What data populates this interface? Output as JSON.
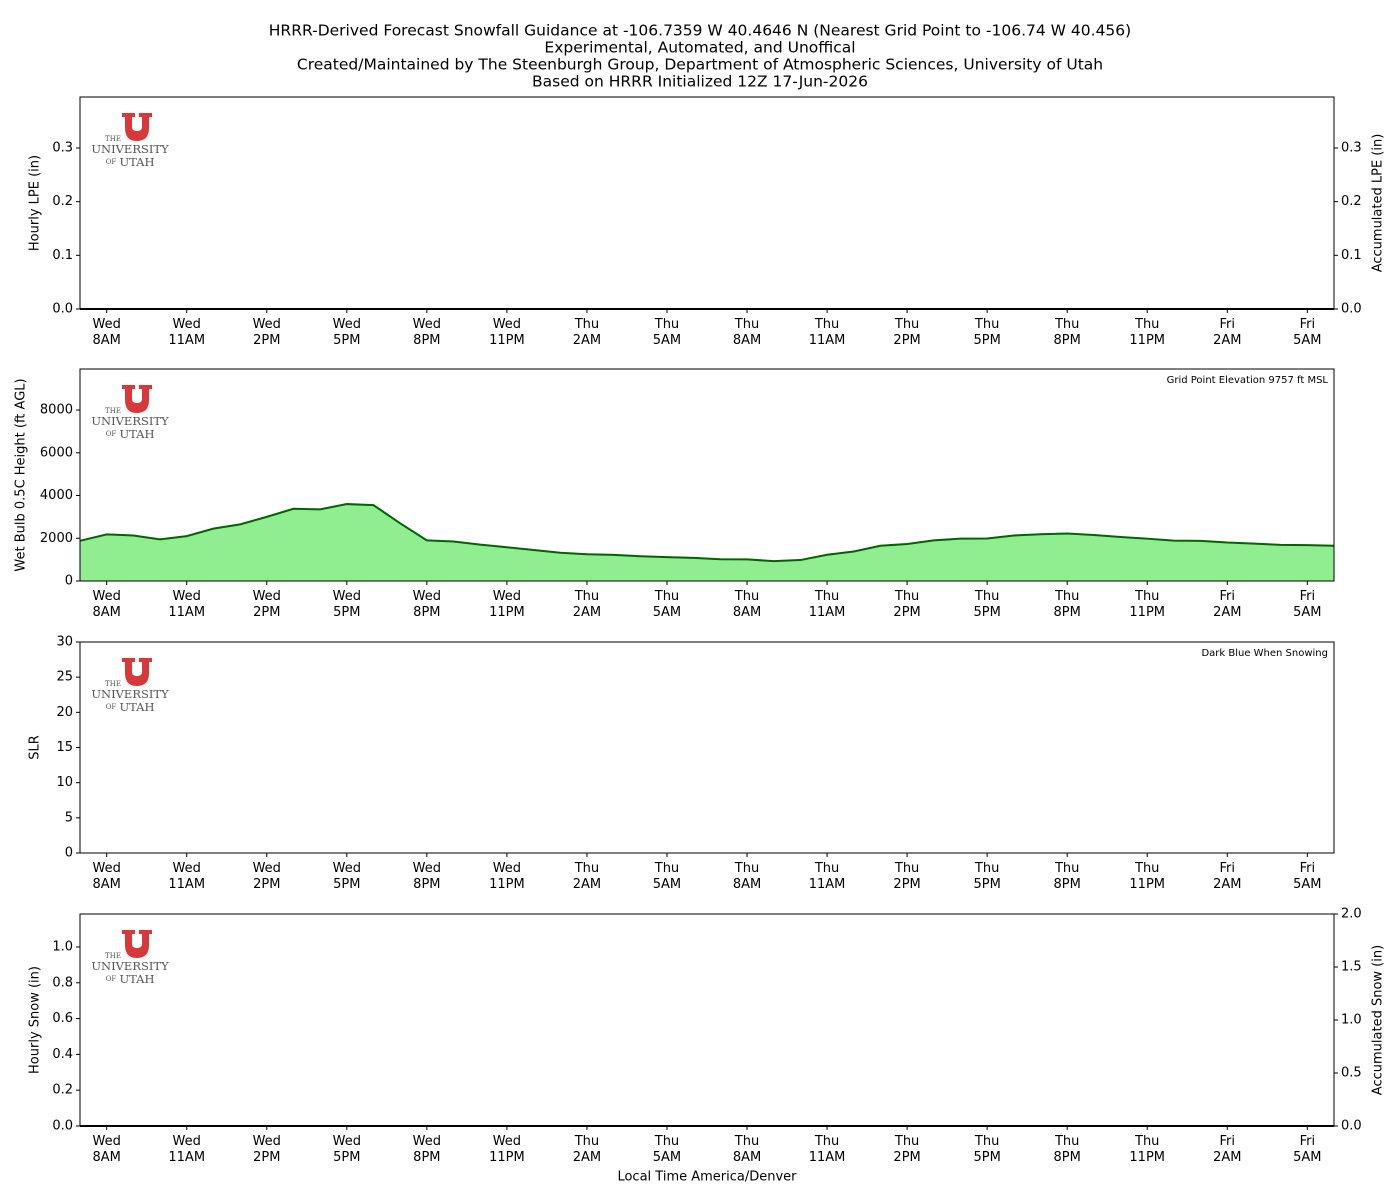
{
  "title": [
    "HRRR-Derived Forecast Snowfall Guidance at -106.7359 W 40.4646 N (Nearest Grid Point to -106.74 W 40.456)",
    "Experimental, Automated, and Unoffical",
    "Created/Maintained by The Steenburgh Group, Department of Atmospheric Sciences, University of Utah",
    "Based on HRRR Initialized 12Z 17-Jun-2026"
  ],
  "xlabel": "Local Time America/Denver",
  "logo": [
    "THE",
    "UNIVERSITY",
    "OF",
    "UTAH"
  ],
  "chart_data": [
    {
      "type": "bar",
      "ylabel": "Hourly LPE (in)",
      "y2label": "Accumulated LPE (in)",
      "categories": [
        null,
        "Wed\n8AM",
        null,
        null,
        "Wed\n11AM",
        null,
        null,
        "Wed\n2PM",
        null,
        null,
        "Wed\n5PM",
        null,
        null,
        "Wed\n8PM",
        null,
        null,
        "Wed\n11PM",
        null,
        null,
        "Thu\n2AM",
        null,
        null,
        "Thu\n5AM",
        null,
        null,
        "Thu\n8AM",
        null,
        null,
        "Thu\n11AM",
        null,
        null,
        "Thu\n2PM",
        null,
        null,
        "Thu\n5PM",
        null,
        null,
        "Thu\n8PM",
        null,
        null,
        "Thu\n11PM",
        null,
        null,
        "Fri\n2AM",
        null,
        null,
        "Fri\n5AM",
        null
      ],
      "ylim": [
        0,
        0.395
      ],
      "yticks": [
        {
          "value": 0,
          "label": "0.0"
        },
        0.1,
        0.2,
        0.3
      ],
      "y2lim": [
        0,
        0.395
      ],
      "y2ticks": [
        {
          "value": 0,
          "label": "0.0"
        },
        0.1,
        0.2,
        0.3
      ],
      "series": [
        {
          "color": "#000000",
          "values": [
            0,
            0,
            0,
            0,
            0,
            0,
            0,
            0,
            0,
            0,
            0,
            0,
            0,
            0,
            0,
            0,
            0,
            0,
            0,
            0,
            0,
            0,
            0,
            0,
            0,
            0,
            0,
            0,
            0,
            0,
            0,
            0,
            0,
            0,
            0,
            0,
            0,
            0,
            0,
            0,
            0,
            0,
            0,
            0,
            0,
            0,
            0,
            0
          ]
        },
        {
          "color": "#000000",
          "axis": "y2",
          "values": [
            0,
            0,
            0,
            0,
            0,
            0,
            0,
            0,
            0,
            0,
            0,
            0,
            0,
            0,
            0,
            0,
            0,
            0,
            0,
            0,
            0,
            0,
            0,
            0,
            0,
            0,
            0,
            0,
            0,
            0,
            0,
            0,
            0,
            0,
            0,
            0,
            0,
            0,
            0,
            0,
            0,
            0,
            0,
            0,
            0,
            0,
            0,
            0
          ]
        }
      ]
    },
    {
      "type": "area",
      "ylabel": "Wet Bulb 0.5C Height (ft AGL)",
      "annotation": "Grid Point Elevation 9757 ft MSL",
      "categories": [
        null,
        "Wed\n8AM",
        null,
        null,
        "Wed\n11AM",
        null,
        null,
        "Wed\n2PM",
        null,
        null,
        "Wed\n5PM",
        null,
        null,
        "Wed\n8PM",
        null,
        null,
        "Wed\n11PM",
        null,
        null,
        "Thu\n2AM",
        null,
        null,
        "Thu\n5AM",
        null,
        null,
        "Thu\n8AM",
        null,
        null,
        "Thu\n11AM",
        null,
        null,
        "Thu\n2PM",
        null,
        null,
        "Thu\n5PM",
        null,
        null,
        "Thu\n8PM",
        null,
        null,
        "Thu\n11PM",
        null,
        null,
        "Fri\n2AM",
        null,
        null,
        "Fri\n5AM",
        null
      ],
      "ylim": [
        0,
        9920
      ],
      "yticks": [
        0,
        2000,
        4000,
        6000,
        8000
      ],
      "series": [
        {
          "color": "#90ee90",
          "line_color": "#006400",
          "values": [
            1880,
            2180,
            2130,
            1950,
            2100,
            2450,
            2650,
            3000,
            3380,
            3350,
            3600,
            3550,
            2700,
            1900,
            1850,
            1700,
            1580,
            1450,
            1320,
            1250,
            1220,
            1160,
            1120,
            1080,
            1020,
            1010,
            930,
            980,
            1230,
            1380,
            1650,
            1730,
            1900,
            1980,
            1990,
            2130,
            2190,
            2220,
            2150,
            2060,
            1980,
            1890,
            1880,
            1800,
            1750,
            1690,
            1680,
            1650
          ]
        }
      ]
    },
    {
      "type": "line",
      "ylabel": "SLR",
      "annotation": "Dark Blue When Snowing",
      "categories": [
        null,
        "Wed\n8AM",
        null,
        null,
        "Wed\n11AM",
        null,
        null,
        "Wed\n2PM",
        null,
        null,
        "Wed\n5PM",
        null,
        null,
        "Wed\n8PM",
        null,
        null,
        "Wed\n11PM",
        null,
        null,
        "Thu\n2AM",
        null,
        null,
        "Thu\n5AM",
        null,
        null,
        "Thu\n8AM",
        null,
        null,
        "Thu\n11AM",
        null,
        null,
        "Thu\n2PM",
        null,
        null,
        "Thu\n5PM",
        null,
        null,
        "Thu\n8PM",
        null,
        null,
        "Thu\n11PM",
        null,
        null,
        "Fri\n2AM",
        null,
        null,
        "Fri\n5AM",
        null
      ],
      "ylim": [
        0,
        30
      ],
      "yticks": [
        0,
        5,
        10,
        15,
        20,
        25,
        30
      ],
      "series": []
    },
    {
      "type": "bar",
      "ylabel": "Hourly Snow (in)",
      "y2label": "Accumulated Snow (in)",
      "categories": [
        null,
        "Wed\n8AM",
        null,
        null,
        "Wed\n11AM",
        null,
        null,
        "Wed\n2PM",
        null,
        null,
        "Wed\n5PM",
        null,
        null,
        "Wed\n8PM",
        null,
        null,
        "Wed\n11PM",
        null,
        null,
        "Thu\n2AM",
        null,
        null,
        "Thu\n5AM",
        null,
        null,
        "Thu\n8AM",
        null,
        null,
        "Thu\n11AM",
        null,
        null,
        "Thu\n2PM",
        null,
        null,
        "Thu\n5PM",
        null,
        null,
        "Thu\n8PM",
        null,
        null,
        "Thu\n11PM",
        null,
        null,
        "Fri\n2AM",
        null,
        null,
        "Fri\n5AM",
        null
      ],
      "ylim": [
        0,
        1.184
      ],
      "yticks": [
        {
          "value": 0,
          "label": "0.0"
        },
        0.2,
        0.4,
        0.6,
        0.8,
        {
          "value": 1,
          "label": "1.0"
        }
      ],
      "y2lim": [
        0,
        2
      ],
      "y2ticks": [
        {
          "value": 0,
          "label": "0.0"
        },
        0.5,
        {
          "value": 1,
          "label": "1.0"
        },
        1.5,
        {
          "value": 2,
          "label": "2.0"
        }
      ],
      "series": [
        {
          "color": "#000000",
          "values": [
            0,
            0,
            0,
            0,
            0,
            0,
            0,
            0,
            0,
            0,
            0,
            0,
            0,
            0,
            0,
            0,
            0,
            0,
            0,
            0,
            0,
            0,
            0,
            0,
            0,
            0,
            0,
            0,
            0,
            0,
            0,
            0,
            0,
            0,
            0,
            0,
            0,
            0,
            0,
            0,
            0,
            0,
            0,
            0,
            0,
            0,
            0,
            0
          ]
        },
        {
          "color": "#000000",
          "axis": "y2",
          "values": [
            0,
            0,
            0,
            0,
            0,
            0,
            0,
            0,
            0,
            0,
            0,
            0,
            0,
            0,
            0,
            0,
            0,
            0,
            0,
            0,
            0,
            0,
            0,
            0,
            0,
            0,
            0,
            0,
            0,
            0,
            0,
            0,
            0,
            0,
            0,
            0,
            0,
            0,
            0,
            0,
            0,
            0,
            0,
            0,
            0,
            0,
            0,
            0
          ]
        }
      ]
    }
  ]
}
